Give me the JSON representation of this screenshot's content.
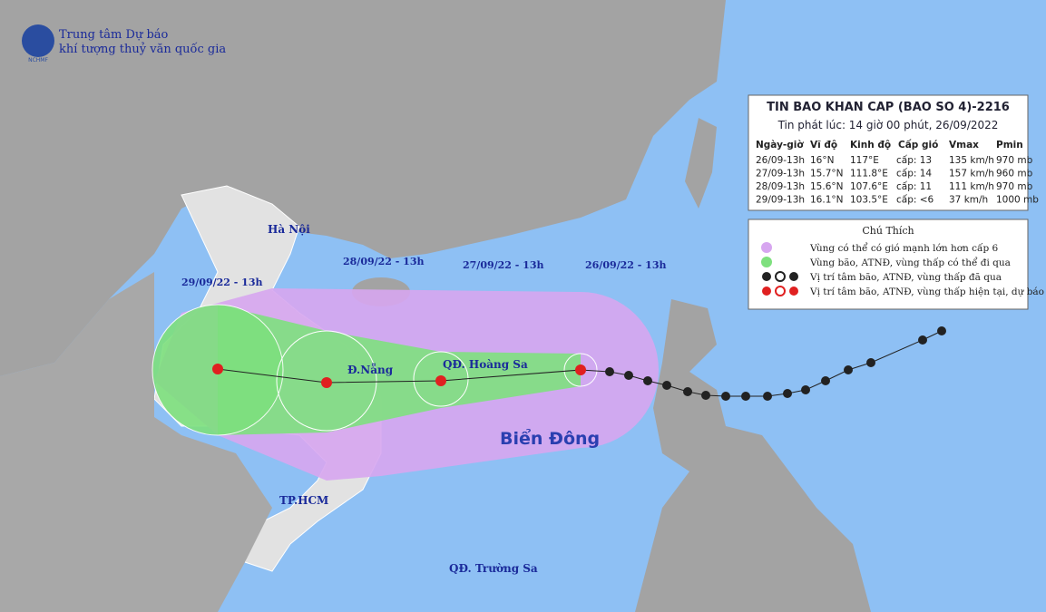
{
  "header": {
    "org_line1": "Trung tâm Dự báo",
    "org_line2": "khí tượng thuỷ văn quốc gia",
    "logo": "NCHMF"
  },
  "bulletin": {
    "title": "TIN BAO KHAN CAP  (BAO SO 4)-2216",
    "issued": "Tin phát lúc: 14 giờ 00 phút, 26/09/2022",
    "table": {
      "columns": [
        "Ngày-giờ",
        "Vĩ độ",
        "Kinh độ",
        "Cấp gió",
        "Vmax",
        "Pmin"
      ],
      "rows": [
        [
          "26/09-13h",
          "16°N",
          "117°E",
          "cấp: 13",
          "135 km/h",
          "970 mb"
        ],
        [
          "27/09-13h",
          "15.7°N",
          "111.8°E",
          "cấp: 14",
          "157 km/h",
          "960 mb"
        ],
        [
          "28/09-13h",
          "15.6°N",
          "107.6°E",
          "cấp: 11",
          "111 km/h",
          "970 mb"
        ],
        [
          "29/09-13h",
          "16.1°N",
          "103.5°E",
          "cấp: <6",
          "37 km/h",
          "1000 mb"
        ]
      ]
    }
  },
  "legend": {
    "title": "Chú Thích",
    "items": [
      "Vùng có thể có gió mạnh lớn hơn cấp 6",
      "Vùng bão, ATNĐ, vùng thấp có thể đi qua",
      "Vị trí tâm bão, ATNĐ, vùng thấp đã qua",
      "Vị trí tâm bão, ATNĐ, vùng thấp hiện tại, dự báo"
    ]
  },
  "map_labels": {
    "dates": [
      "29/09/22 - 13h",
      "28/09/22 - 13h",
      "27/09/22 - 13h",
      "26/09/22 - 13h"
    ],
    "places": [
      "Hà Nội",
      "Đ.Nẵng",
      "QĐ. Hoàng Sa",
      "TP.HCM",
      "QĐ. Trường Sa"
    ],
    "sea": "Biển Đông"
  }
}
